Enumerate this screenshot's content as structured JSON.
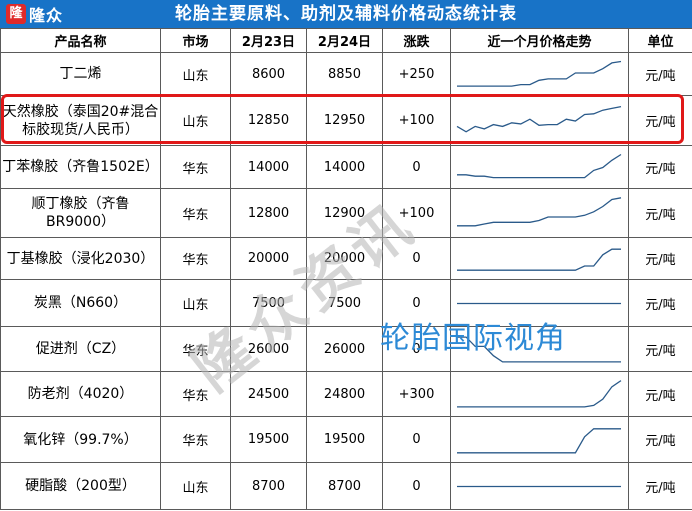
{
  "header": {
    "logo_badge": "隆",
    "logo_text": "隆众",
    "title": "轮胎主要原料、助剂及辅料价格动态统计表"
  },
  "columns": [
    "产品名称",
    "市场",
    "2月23日",
    "2月24日",
    "涨跌",
    "近一个月价格走势",
    "单位"
  ],
  "rows": [
    {
      "name": "丁二烯",
      "market": "山东",
      "d23": "8600",
      "d24": "8850",
      "change": "+250",
      "unit": "元/吨"
    },
    {
      "name": "天然橡胶（泰国20#混合标胶现货/人民币）",
      "market": "山东",
      "d23": "12850",
      "d24": "12950",
      "change": "+100",
      "unit": "元/吨"
    },
    {
      "name": "丁苯橡胶（齐鲁1502E）",
      "market": "华东",
      "d23": "14000",
      "d24": "14000",
      "change": "0",
      "unit": "元/吨"
    },
    {
      "name": "顺丁橡胶（齐鲁BR9000）",
      "market": "华东",
      "d23": "12800",
      "d24": "12900",
      "change": "+100",
      "unit": "元/吨"
    },
    {
      "name": "丁基橡胶（浸化2030）",
      "market": "华东",
      "d23": "20000",
      "d24": "20000",
      "change": "0",
      "unit": "元/吨"
    },
    {
      "name": "炭黑（N660）",
      "market": "山东",
      "d23": "7500",
      "d24": "7500",
      "change": "0",
      "unit": "元/吨"
    },
    {
      "name": "促进剂（CZ）",
      "market": "华东",
      "d23": "26000",
      "d24": "26000",
      "change": "0",
      "unit": "元/吨"
    },
    {
      "name": "防老剂（4020）",
      "market": "华东",
      "d23": "24500",
      "d24": "24800",
      "change": "+300",
      "unit": "元/吨"
    },
    {
      "name": "氧化锌（99.7%）",
      "market": "华东",
      "d23": "19500",
      "d24": "19500",
      "change": "0",
      "unit": "元/吨"
    },
    {
      "name": "硬脂酸（200型）",
      "market": "山东",
      "d23": "8700",
      "d24": "8700",
      "change": "0",
      "unit": "元/吨"
    }
  ],
  "trends": [
    [
      0.1,
      0.1,
      0.1,
      0.1,
      0.1,
      0.1,
      0.1,
      0.15,
      0.15,
      0.3,
      0.35,
      0.35,
      0.35,
      0.55,
      0.55,
      0.55,
      0.7,
      0.9,
      0.95
    ],
    [
      0.35,
      0.2,
      0.35,
      0.28,
      0.4,
      0.35,
      0.45,
      0.42,
      0.55,
      0.38,
      0.4,
      0.4,
      0.55,
      0.5,
      0.68,
      0.7,
      0.8,
      0.85,
      0.9
    ],
    [
      0.25,
      0.25,
      0.2,
      0.2,
      0.15,
      0.15,
      0.15,
      0.15,
      0.15,
      0.15,
      0.15,
      0.15,
      0.15,
      0.15,
      0.15,
      0.4,
      0.5,
      0.75,
      0.95
    ],
    [
      0.15,
      0.15,
      0.15,
      0.2,
      0.25,
      0.25,
      0.25,
      0.25,
      0.25,
      0.3,
      0.4,
      0.4,
      0.4,
      0.4,
      0.45,
      0.55,
      0.7,
      0.9,
      0.95
    ],
    [
      0.1,
      0.1,
      0.1,
      0.1,
      0.1,
      0.1,
      0.1,
      0.1,
      0.1,
      0.1,
      0.1,
      0.1,
      0.1,
      0.1,
      0.25,
      0.25,
      0.65,
      0.85,
      0.85
    ],
    [
      0.5,
      0.5,
      0.5,
      0.5,
      0.5,
      0.5,
      0.5,
      0.5,
      0.5,
      0.5,
      0.5,
      0.5,
      0.5,
      0.5,
      0.5,
      0.5,
      0.5,
      0.5,
      0.5
    ],
    [
      0.9,
      0.9,
      0.6,
      0.6,
      0.3,
      0.1,
      0.1,
      0.1,
      0.1,
      0.1,
      0.1,
      0.1,
      0.1,
      0.1,
      0.1,
      0.1,
      0.1,
      0.1,
      0.1
    ],
    [
      0.1,
      0.1,
      0.1,
      0.1,
      0.1,
      0.1,
      0.1,
      0.1,
      0.1,
      0.1,
      0.1,
      0.1,
      0.1,
      0.1,
      0.1,
      0.15,
      0.35,
      0.75,
      0.95
    ],
    [
      0.1,
      0.1,
      0.1,
      0.1,
      0.1,
      0.1,
      0.1,
      0.1,
      0.1,
      0.1,
      0.1,
      0.1,
      0.1,
      0.1,
      0.6,
      0.85,
      0.85,
      0.85,
      0.85
    ],
    [
      0.5,
      0.5,
      0.5,
      0.5,
      0.5,
      0.5,
      0.5,
      0.5,
      0.5,
      0.5,
      0.5,
      0.5,
      0.5,
      0.5,
      0.5,
      0.5,
      0.5,
      0.5,
      0.5
    ]
  ],
  "watermark": "隆众资讯",
  "overlay_caption": "轮胎国际视角",
  "colors": {
    "header_bg": "#1873c7",
    "highlight": "#e01818",
    "trend_line": "#2a5a8a",
    "overlay": "#2d8ad6"
  }
}
